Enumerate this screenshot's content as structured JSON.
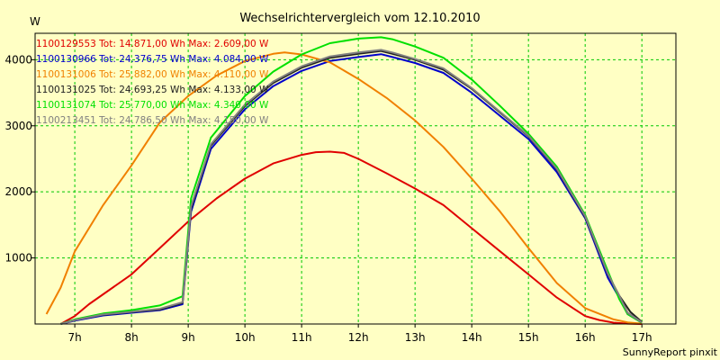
{
  "chart_data": {
    "type": "line",
    "title": "Wechselrichtervergleich vom 12.10.2010",
    "ylabel": "W",
    "xlabel": "",
    "footer": "SunnyReport pinxit",
    "xlim": [
      6.3,
      17.6
    ],
    "ylim": [
      0,
      4400
    ],
    "grid": true,
    "legend_position": "top-left",
    "x_ticks": [
      {
        "value": 7,
        "label": "7h"
      },
      {
        "value": 8,
        "label": "8h"
      },
      {
        "value": 9,
        "label": "9h"
      },
      {
        "value": 10,
        "label": "10h"
      },
      {
        "value": 11,
        "label": "11h"
      },
      {
        "value": 12,
        "label": "12h"
      },
      {
        "value": 13,
        "label": "13h"
      },
      {
        "value": 14,
        "label": "14h"
      },
      {
        "value": 15,
        "label": "15h"
      },
      {
        "value": 16,
        "label": "16h"
      },
      {
        "value": 17,
        "label": "17h"
      }
    ],
    "y_ticks": [
      {
        "value": 1000,
        "label": "1000"
      },
      {
        "value": 2000,
        "label": "2000"
      },
      {
        "value": 3000,
        "label": "3000"
      },
      {
        "value": 4000,
        "label": "4000"
      }
    ],
    "series": [
      {
        "name": "1100129553",
        "legend": "1100129553 Tot: 14.871,00 Wh Max: 2.609,00 W",
        "color": "#e00000",
        "x": [
          6.75,
          7.0,
          7.25,
          7.5,
          8.0,
          8.5,
          9.0,
          9.5,
          10.0,
          10.5,
          11.0,
          11.25,
          11.5,
          11.75,
          12.0,
          12.5,
          13.0,
          13.5,
          14.0,
          14.5,
          15.0,
          15.5,
          16.0,
          16.25,
          16.5,
          16.75,
          17.0
        ],
        "y": [
          0,
          120,
          300,
          450,
          750,
          1150,
          1550,
          1900,
          2200,
          2430,
          2560,
          2600,
          2609,
          2590,
          2500,
          2280,
          2050,
          1800,
          1450,
          1100,
          750,
          400,
          120,
          60,
          20,
          5,
          0
        ]
      },
      {
        "name": "1100130966",
        "legend": "1100130966 Tot: 24.376,75 Wh Max: 4.084,00 W",
        "color": "#0000cc",
        "x": [
          6.75,
          7.0,
          7.5,
          8.0,
          8.5,
          8.9,
          9.05,
          9.4,
          10.0,
          10.5,
          11.0,
          11.5,
          12.0,
          12.4,
          12.6,
          13.0,
          13.5,
          14.0,
          14.5,
          15.0,
          15.5,
          16.0,
          16.4,
          16.6,
          16.75,
          17.0
        ],
        "y": [
          0,
          50,
          130,
          170,
          210,
          300,
          1700,
          2650,
          3250,
          3600,
          3830,
          3980,
          4040,
          4084,
          4040,
          3950,
          3800,
          3500,
          3150,
          2800,
          2300,
          1600,
          700,
          400,
          150,
          20
        ]
      },
      {
        "name": "1100131006",
        "legend": "1100131006 Tot: 25.882,00 Wh Max: 4.110,00 W",
        "color": "#f08000",
        "x": [
          6.5,
          6.75,
          7.0,
          7.5,
          8.0,
          8.5,
          9.0,
          9.5,
          10.0,
          10.5,
          10.7,
          11.0,
          11.5,
          12.0,
          12.5,
          13.0,
          13.5,
          14.0,
          14.5,
          15.0,
          15.5,
          16.0,
          16.5,
          16.75,
          17.0
        ],
        "y": [
          150,
          550,
          1100,
          1800,
          2400,
          3050,
          3450,
          3760,
          3980,
          4090,
          4110,
          4080,
          3960,
          3710,
          3420,
          3080,
          2680,
          2200,
          1700,
          1150,
          620,
          240,
          70,
          25,
          5
        ]
      },
      {
        "name": "1100131025",
        "legend": "1100131025 Tot: 24.693,25 Wh Max: 4.133,00 W",
        "color": "#202020",
        "x": [
          6.75,
          7.0,
          7.5,
          8.0,
          8.5,
          8.9,
          9.05,
          9.4,
          10.0,
          10.5,
          11.0,
          11.5,
          12.0,
          12.4,
          12.6,
          13.0,
          13.5,
          14.0,
          14.5,
          15.0,
          15.5,
          16.0,
          16.4,
          16.6,
          16.8,
          17.0
        ],
        "y": [
          0,
          60,
          140,
          180,
          220,
          320,
          1750,
          2700,
          3300,
          3650,
          3880,
          4030,
          4090,
          4133,
          4090,
          4000,
          3850,
          3560,
          3200,
          2840,
          2340,
          1620,
          750,
          430,
          180,
          30
        ]
      },
      {
        "name": "1100131074",
        "legend": "1100131074 Tot: 25.770,00 Wh Max: 4.340,00 W",
        "color": "#00e000",
        "x": [
          6.75,
          7.0,
          7.5,
          8.0,
          8.5,
          8.9,
          9.05,
          9.4,
          10.0,
          10.5,
          11.0,
          11.5,
          12.0,
          12.4,
          12.6,
          13.0,
          13.5,
          14.0,
          14.5,
          15.0,
          15.5,
          16.0,
          16.4,
          16.6,
          16.75,
          17.0
        ],
        "y": [
          0,
          70,
          160,
          210,
          280,
          420,
          1900,
          2820,
          3450,
          3820,
          4080,
          4250,
          4320,
          4340,
          4310,
          4200,
          4030,
          3700,
          3300,
          2880,
          2380,
          1650,
          800,
          380,
          150,
          20
        ]
      },
      {
        "name": "1100213451",
        "legend": "1100213451 Tot: 24.786,50 Wh Max: 4.150,00 W",
        "color": "#808080",
        "x": [
          6.75,
          7.0,
          7.5,
          8.0,
          8.5,
          8.9,
          9.05,
          9.4,
          10.0,
          10.5,
          11.0,
          11.5,
          12.0,
          12.4,
          12.6,
          13.0,
          13.5,
          14.0,
          14.5,
          15.0,
          15.5,
          16.0,
          16.4,
          16.6,
          16.75,
          17.0
        ],
        "y": [
          0,
          60,
          145,
          185,
          230,
          330,
          1780,
          2720,
          3320,
          3670,
          3900,
          4050,
          4110,
          4150,
          4110,
          4010,
          3870,
          3570,
          3210,
          2850,
          2350,
          1630,
          760,
          430,
          170,
          25
        ]
      }
    ]
  }
}
